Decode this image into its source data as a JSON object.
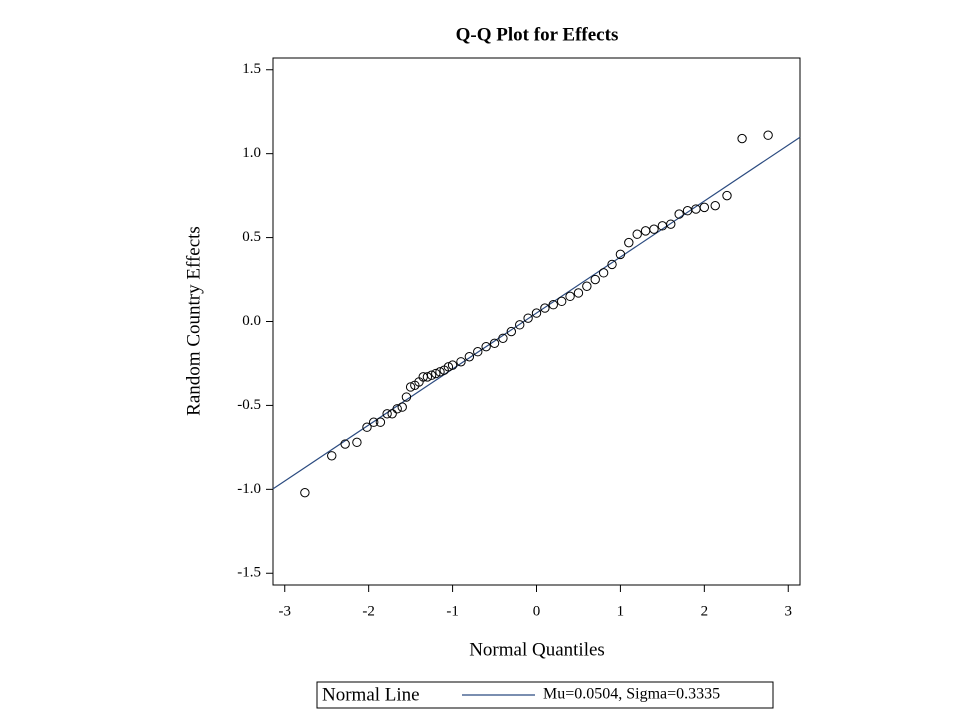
{
  "chart_data": {
    "type": "scatter",
    "title": "Q-Q Plot for Effects",
    "x_label": "Normal Quantiles",
    "y_label": "Random Country Effects",
    "xlim": [
      -3.14,
      3.14
    ],
    "ylim": [
      -1.57,
      1.57
    ],
    "xticks": [
      -3,
      -2,
      -1,
      0,
      1,
      2,
      3
    ],
    "yticks": [
      {
        "value": -1.5,
        "label": "-1.5"
      },
      {
        "value": -1,
        "label": "-1.0"
      },
      -0.5,
      {
        "value": 0,
        "label": "0.0"
      },
      0.5,
      {
        "value": 1,
        "label": "1.0"
      },
      1.5
    ],
    "color": "#000000",
    "x": [
      -2.76,
      -2.44,
      -2.28,
      -2.14,
      -2.02,
      -1.94,
      -1.86,
      -1.78,
      -1.72,
      -1.66,
      -1.6,
      -1.55,
      -1.5,
      -1.45,
      -1.4,
      -1.35,
      -1.3,
      -1.25,
      -1.2,
      -1.15,
      -1.1,
      -1.05,
      -1.0,
      -0.9,
      -0.8,
      -0.7,
      -0.6,
      -0.5,
      -0.4,
      -0.3,
      -0.2,
      -0.1,
      0.0,
      0.1,
      0.2,
      0.3,
      0.4,
      0.5,
      0.6,
      0.7,
      0.8,
      0.9,
      1.0,
      1.1,
      1.2,
      1.3,
      1.4,
      1.5,
      1.6,
      1.7,
      1.8,
      1.9,
      2.0,
      2.13,
      2.27,
      2.45,
      2.76
    ],
    "values": [
      -1.02,
      -0.8,
      -0.73,
      -0.72,
      -0.63,
      -0.6,
      -0.6,
      -0.55,
      -0.55,
      -0.52,
      -0.51,
      -0.45,
      -0.39,
      -0.38,
      -0.36,
      -0.33,
      -0.33,
      -0.32,
      -0.31,
      -0.3,
      -0.29,
      -0.27,
      -0.26,
      -0.24,
      -0.21,
      -0.18,
      -0.15,
      -0.13,
      -0.1,
      -0.06,
      -0.02,
      0.02,
      0.05,
      0.08,
      0.1,
      0.12,
      0.15,
      0.17,
      0.21,
      0.25,
      0.29,
      0.34,
      0.4,
      0.47,
      0.52,
      0.54,
      0.55,
      0.57,
      0.58,
      0.64,
      0.66,
      0.67,
      0.68,
      0.69,
      0.75,
      1.09,
      1.11
    ],
    "normal_line": {
      "name": "Normal Line",
      "label": "Mu=0.0504, Sigma=0.3335",
      "color": "#2b4b80",
      "x": [
        -3.14,
        3.14
      ],
      "values": [
        -0.997,
        1.098
      ]
    }
  }
}
